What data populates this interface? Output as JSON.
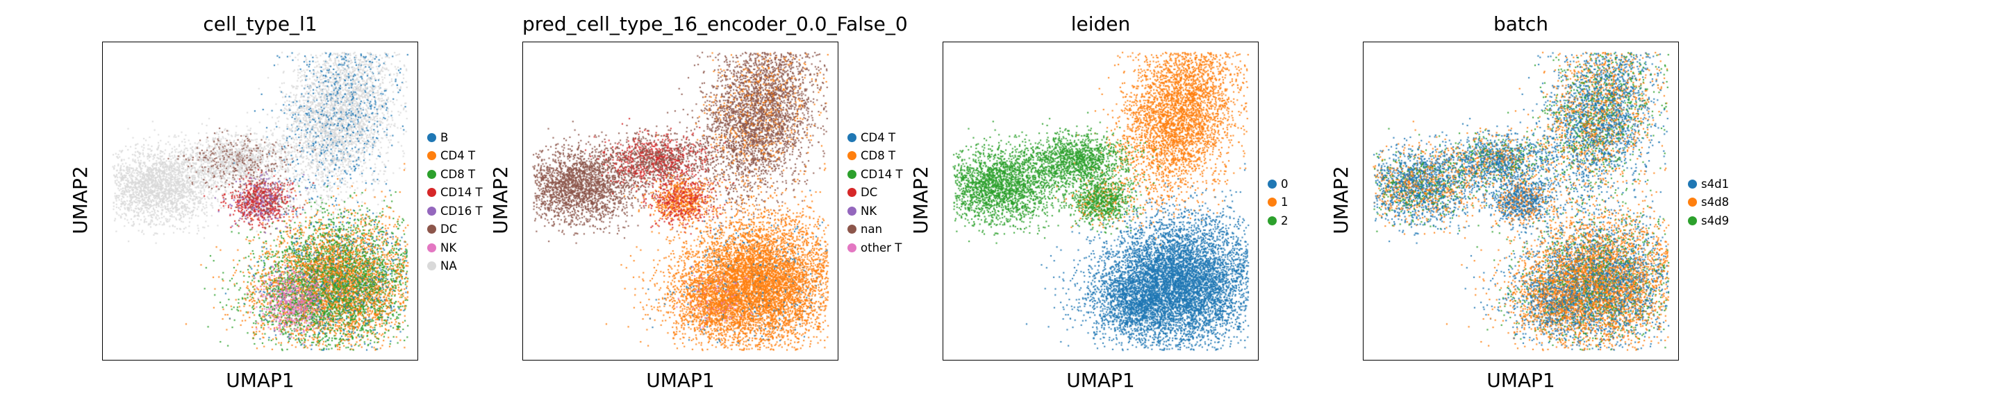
{
  "chart_data": [
    {
      "type": "scatter",
      "title": "cell_type_l1",
      "xlabel": "UMAP1",
      "ylabel": "UMAP2",
      "legend": [
        "B",
        "CD4 T",
        "CD8 T",
        "CD14 T",
        "CD16 T",
        "DC",
        "NK",
        "NA"
      ],
      "colors": [
        "#1f77b4",
        "#ff7f0e",
        "#2ca02c",
        "#d62728",
        "#9467bd",
        "#8c564b",
        "#e377c2",
        "#d9d9d9"
      ],
      "legend_placement": "right"
    },
    {
      "type": "scatter",
      "title": "pred_cell_type_16_encoder_0.0_False_0",
      "xlabel": "UMAP1",
      "ylabel": "UMAP2",
      "legend": [
        "CD4 T",
        "CD8 T",
        "CD14 T",
        "DC",
        "NK",
        "nan",
        "other T"
      ],
      "colors": [
        "#1f77b4",
        "#ff7f0e",
        "#2ca02c",
        "#d62728",
        "#9467bd",
        "#8c564b",
        "#e377c2"
      ],
      "legend_placement": "right"
    },
    {
      "type": "scatter",
      "title": "leiden",
      "xlabel": "UMAP1",
      "ylabel": "UMAP2",
      "legend": [
        "0",
        "1",
        "2"
      ],
      "colors": [
        "#1f77b4",
        "#ff7f0e",
        "#2ca02c"
      ],
      "legend_placement": "right"
    },
    {
      "type": "scatter",
      "title": "batch",
      "xlabel": "UMAP1",
      "ylabel": "UMAP2",
      "legend": [
        "s4d1",
        "s4d8",
        "s4d9"
      ],
      "colors": [
        "#1f77b4",
        "#ff7f0e",
        "#2ca02c"
      ],
      "legend_placement": "right"
    }
  ]
}
